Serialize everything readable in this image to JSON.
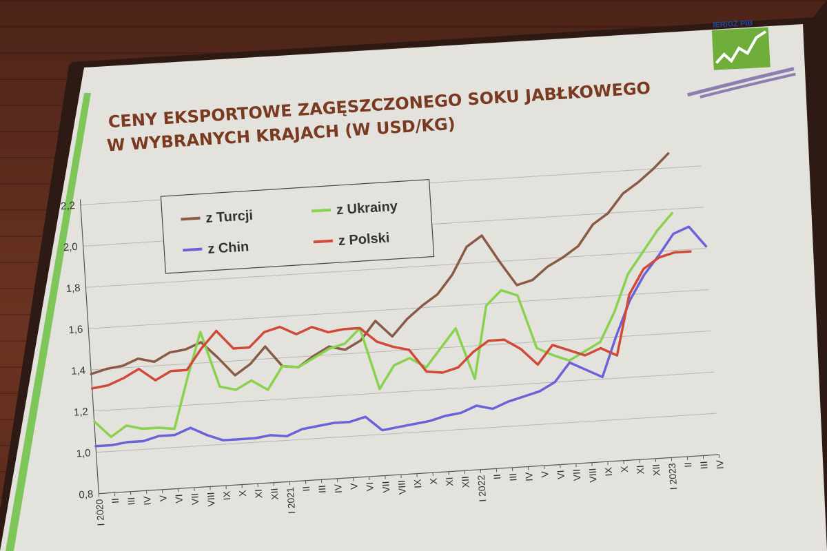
{
  "logo": {
    "text": "IERiGŻ PIB"
  },
  "chart_data": {
    "type": "line",
    "title_line1": "CENY EKSPORTOWE ZAGĘSZCZONEGO SOKU JABŁKOWEGO",
    "title_line2": "W WYBRANYCH KRAJACH (W USD/KG)",
    "xlabel": "",
    "ylabel": "",
    "ylim": [
      0.8,
      2.2
    ],
    "yticks": [
      "0,8",
      "1,0",
      "1,2",
      "1,4",
      "1,6",
      "1,8",
      "2,0",
      "2,2"
    ],
    "grid": "horizontal",
    "legend_position": "top-left",
    "x": [
      "I 2020",
      "II",
      "III",
      "IV",
      "V",
      "VI",
      "VII",
      "VIII",
      "IX",
      "X",
      "XI",
      "XII",
      "I 2021",
      "II",
      "III",
      "IV",
      "V",
      "VI",
      "VII",
      "VIII",
      "IX",
      "X",
      "XI",
      "XII",
      "I 2022",
      "II",
      "III",
      "IV",
      "V",
      "VI",
      "VII",
      "VIII",
      "IX",
      "X",
      "XI",
      "XII",
      "I 2023",
      "II",
      "III",
      "IV"
    ],
    "series": [
      {
        "name": "z Turcji",
        "color": "#8a5a48",
        "values": [
          1.38,
          1.4,
          1.41,
          1.44,
          1.42,
          1.46,
          1.47,
          1.5,
          1.42,
          1.33,
          1.38,
          1.46,
          1.36,
          1.35,
          1.4,
          1.44,
          1.42,
          1.46,
          1.55,
          1.47,
          1.55,
          1.61,
          1.66,
          1.75,
          1.88,
          1.93,
          1.8,
          1.68,
          1.7,
          1.76,
          1.8,
          1.85,
          1.95,
          2.0,
          2.09,
          2.14,
          2.2,
          2.27,
          null,
          null
        ]
      },
      {
        "name": "z Ukrainy",
        "color": "#88d24e",
        "values": [
          1.15,
          1.07,
          1.12,
          1.1,
          1.1,
          1.09,
          1.33,
          1.55,
          1.28,
          1.26,
          1.3,
          1.25,
          1.36,
          1.35,
          1.39,
          1.43,
          1.45,
          1.52,
          1.22,
          1.33,
          1.36,
          1.31,
          1.4,
          1.49,
          1.24,
          1.59,
          1.66,
          1.63,
          1.37,
          1.33,
          1.3,
          1.34,
          1.38,
          1.52,
          1.7,
          1.8,
          1.9,
          1.98,
          null,
          null
        ]
      },
      {
        "name": "z Chin",
        "color": "#6a62d8",
        "values": [
          1.03,
          1.03,
          1.04,
          1.04,
          1.06,
          1.06,
          1.09,
          1.05,
          1.02,
          1.02,
          1.02,
          1.03,
          1.02,
          1.05,
          1.06,
          1.07,
          1.07,
          1.09,
          1.02,
          1.03,
          1.04,
          1.05,
          1.07,
          1.08,
          1.11,
          1.09,
          1.12,
          1.14,
          1.16,
          1.2,
          1.29,
          1.25,
          1.21,
          1.4,
          1.57,
          1.69,
          1.78,
          1.88,
          1.91,
          1.81
        ]
      },
      {
        "name": "z Polski",
        "color": "#d04a3a",
        "values": [
          1.31,
          1.32,
          1.35,
          1.39,
          1.33,
          1.37,
          1.37,
          1.47,
          1.55,
          1.46,
          1.46,
          1.53,
          1.55,
          1.51,
          1.54,
          1.51,
          1.52,
          1.52,
          1.45,
          1.42,
          1.4,
          1.29,
          1.28,
          1.3,
          1.37,
          1.42,
          1.42,
          1.37,
          1.29,
          1.38,
          1.35,
          1.32,
          1.35,
          1.31,
          1.6,
          1.72,
          1.77,
          1.79,
          1.79,
          null
        ]
      }
    ]
  }
}
